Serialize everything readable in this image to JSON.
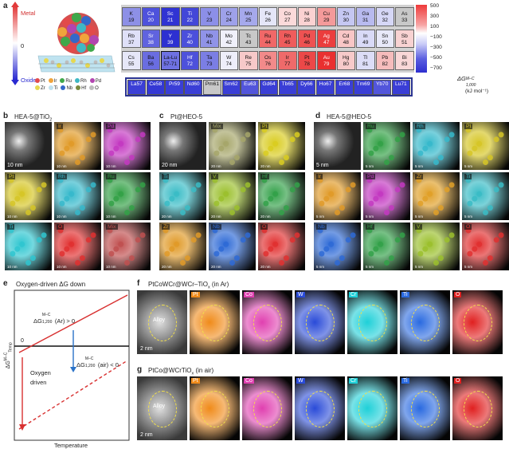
{
  "panel_a": {
    "letter": "a",
    "axis_top": "Metal",
    "axis_zero": "0",
    "axis_bottom": "Oxide",
    "legend": [
      {
        "sym": "Pt",
        "color": "#e24a4a"
      },
      {
        "sym": "Ir",
        "color": "#f0a43b"
      },
      {
        "sym": "Ru",
        "color": "#3fa84a"
      },
      {
        "sym": "Rh",
        "color": "#3fb8c4"
      },
      {
        "sym": "Pd",
        "color": "#b245b0"
      },
      {
        "sym": "Zr",
        "color": "#e6d850"
      },
      {
        "sym": "Ti",
        "color": "#bfe1ee"
      },
      {
        "sym": "Nb",
        "color": "#3468c9"
      },
      {
        "sym": "Hf",
        "color": "#7a8a40"
      },
      {
        "sym": "O",
        "color": "#bdbdbd"
      }
    ],
    "elements": [
      {
        "s": "K",
        "n": "19",
        "c": "#8d90e6"
      },
      {
        "s": "Ca",
        "n": "20",
        "c": "#4e52dc"
      },
      {
        "s": "Sc",
        "n": "21",
        "c": "#3033d3"
      },
      {
        "s": "Ti",
        "n": "22",
        "c": "#4347d8"
      },
      {
        "s": "V",
        "n": "23",
        "c": "#8c8fe8"
      },
      {
        "s": "Cr",
        "n": "24",
        "c": "#9ea1ea"
      },
      {
        "s": "Mn",
        "n": "25",
        "c": "#a6a9ec"
      },
      {
        "s": "Fe",
        "n": "26",
        "c": "#e5e6f8"
      },
      {
        "s": "Co",
        "n": "27",
        "c": "#fbdada"
      },
      {
        "s": "Ni",
        "n": "28",
        "c": "#fbd2d2"
      },
      {
        "s": "Cu",
        "n": "29",
        "c": "#f49a9a"
      },
      {
        "s": "Zn",
        "n": "30",
        "c": "#c5c7f2"
      },
      {
        "s": "Ga",
        "n": "31",
        "c": "#b8baef"
      },
      {
        "s": "Ge",
        "n": "32",
        "c": "#d6d7f6"
      },
      {
        "s": "As",
        "n": "33",
        "c": "#c8c8c8"
      },
      {
        "s": "Rb",
        "n": "37",
        "c": "#dfe0f8"
      },
      {
        "s": "Sr",
        "n": "38",
        "c": "#6063df"
      },
      {
        "s": "Y",
        "n": "39",
        "c": "#2d30d1"
      },
      {
        "s": "Zr",
        "n": "40",
        "c": "#4b4fdb"
      },
      {
        "s": "Nb",
        "n": "41",
        "c": "#9093e8"
      },
      {
        "s": "Mo",
        "n": "42",
        "c": "#f0f0fa"
      },
      {
        "s": "Tc",
        "n": "43",
        "c": "#c8c8c8"
      },
      {
        "s": "Ru",
        "n": "44",
        "c": "#f16868"
      },
      {
        "s": "Rh",
        "n": "45",
        "c": "#ef5c5c"
      },
      {
        "s": "Pd",
        "n": "46",
        "c": "#ee5252"
      },
      {
        "s": "Ag",
        "n": "47",
        "c": "#eb3d3d"
      },
      {
        "s": "Cd",
        "n": "48",
        "c": "#f8c6c6"
      },
      {
        "s": "In",
        "n": "49",
        "c": "#d9daf7"
      },
      {
        "s": "Sn",
        "n": "50",
        "c": "#e8e9f9"
      },
      {
        "s": "Sb",
        "n": "51",
        "c": "#f8d2d2"
      },
      {
        "s": "Cs",
        "n": "55",
        "c": "#e6e7f8"
      },
      {
        "s": "Ba",
        "n": "56",
        "c": "#6a6de1"
      },
      {
        "s": "La-Lu",
        "n": "57-71",
        "c": "#6e71e2"
      },
      {
        "s": "Hf",
        "n": "72",
        "c": "#4d51db"
      },
      {
        "s": "Ta",
        "n": "73",
        "c": "#7b7ee4"
      },
      {
        "s": "W",
        "n": "74",
        "c": "#eeeefa"
      },
      {
        "s": "Re",
        "n": "75",
        "c": "#f7c9c9"
      },
      {
        "s": "Os",
        "n": "76",
        "c": "#f28a8a"
      },
      {
        "s": "Ir",
        "n": "77",
        "c": "#ef6a6a"
      },
      {
        "s": "Pt",
        "n": "78",
        "c": "#ec4848"
      },
      {
        "s": "Au",
        "n": "79",
        "c": "#e93030"
      },
      {
        "s": "Hg",
        "n": "80",
        "c": "#f7caca"
      },
      {
        "s": "Tl",
        "n": "81",
        "c": "#dcddf7"
      },
      {
        "s": "Pb",
        "n": "82",
        "c": "#f6bcbc"
      },
      {
        "s": "Bi",
        "n": "83",
        "c": "#f9d7d7"
      }
    ],
    "lanthanides": [
      {
        "s": "La",
        "n": "57",
        "c": "#3b3fd6"
      },
      {
        "s": "Ce",
        "n": "58",
        "c": "#3438d4"
      },
      {
        "s": "Pr",
        "n": "59",
        "c": "#3a3ed6"
      },
      {
        "s": "Nd",
        "n": "60",
        "c": "#3a3ed6"
      },
      {
        "s": "Pm",
        "n": "61",
        "c": "#c8c8c8"
      },
      {
        "s": "Sm",
        "n": "62",
        "c": "#3a3ed6"
      },
      {
        "s": "Eu",
        "n": "63",
        "c": "#5255db"
      },
      {
        "s": "Gd",
        "n": "64",
        "c": "#3a3ed6"
      },
      {
        "s": "Tb",
        "n": "65",
        "c": "#3a3ed6"
      },
      {
        "s": "Dy",
        "n": "66",
        "c": "#3a3ed6"
      },
      {
        "s": "Ho",
        "n": "67",
        "c": "#3a3ed6"
      },
      {
        "s": "Er",
        "n": "68",
        "c": "#3a3ed6"
      },
      {
        "s": "Tm",
        "n": "69",
        "c": "#3a3ed6"
      },
      {
        "s": "Yb",
        "n": "70",
        "c": "#5255db"
      },
      {
        "s": "Lu",
        "n": "71",
        "c": "#3a3ed6"
      }
    ],
    "colorbar_ticks": [
      "500",
      "300",
      "100",
      "−100",
      "−300",
      "−500",
      "−700"
    ],
    "colorbar_label_main": "ΔG",
    "colorbar_label_sup": "M–C",
    "colorbar_label_sub": "1,000",
    "colorbar_unit": "(kJ mol⁻¹)"
  },
  "panel_b": {
    "letter": "b",
    "title": "HEA-5@TiO",
    "title_sub": "2",
    "scale_main": "10 nm",
    "scale_small": "10 nm",
    "tiles": [
      {
        "label": "",
        "color": "#b7b7b7"
      },
      {
        "label": "Ir",
        "color": "#e09a28"
      },
      {
        "label": "Pd",
        "color": "#c338c1"
      },
      {
        "label": "Pt",
        "color": "#d6c627"
      },
      {
        "label": "Rh",
        "color": "#36b9cb"
      },
      {
        "label": "Ru",
        "color": "#33a146"
      },
      {
        "label": "Ti",
        "color": "#2fc6d0"
      },
      {
        "label": "O",
        "color": "#e13030"
      },
      {
        "label": "Mix",
        "color": "#c05050"
      }
    ]
  },
  "panel_c": {
    "letter": "c",
    "title": "Pt@HEO-5",
    "scale_main": "20 nm",
    "scale_small": "20 nm",
    "tiles": [
      {
        "label": "",
        "color": "#b7b7b7"
      },
      {
        "label": "Mix",
        "color": "#a6a66a"
      },
      {
        "label": "Pt",
        "color": "#d9cc20"
      },
      {
        "label": "Ti",
        "color": "#39bcc6"
      },
      {
        "label": "V",
        "color": "#9bc02d"
      },
      {
        "label": "Hf",
        "color": "#33a149"
      },
      {
        "label": "Zr",
        "color": "#e09a28"
      },
      {
        "label": "Nb",
        "color": "#2e6ad6"
      },
      {
        "label": "O",
        "color": "#e13030"
      }
    ]
  },
  "panel_d": {
    "letter": "d",
    "title": "HEA-5@HEO-5",
    "scale_main": "5 nm",
    "scale_small": "5 nm",
    "tiles": [
      {
        "label": "",
        "color": "#b7b7b7"
      },
      {
        "label": "Ru",
        "color": "#33a146"
      },
      {
        "label": "Rh",
        "color": "#36b9cb"
      },
      {
        "label": "Pt",
        "color": "#d6c627"
      },
      {
        "label": "Ir",
        "color": "#e09a28"
      },
      {
        "label": "Pd",
        "color": "#c338c1"
      },
      {
        "label": "Zr",
        "color": "#e0a028"
      },
      {
        "label": "Ti",
        "color": "#39bcc6"
      },
      {
        "label": "Nb",
        "color": "#2e6ad6"
      },
      {
        "label": "Hf",
        "color": "#33a149"
      },
      {
        "label": "V",
        "color": "#9bc02d"
      },
      {
        "label": "O",
        "color": "#e13030"
      }
    ]
  },
  "panel_e": {
    "letter": "e",
    "title": "Oxygen-driven ΔG down",
    "line_ar": "ΔG",
    "line_ar_sup": "M–C",
    "line_ar_sub": "1,200",
    "line_ar_rest": "(Ar) > 0",
    "line_air_rest": "(air) < 0",
    "oxygen_driven": "Oxygen driven",
    "zero": "0",
    "ylabel": "ΔG",
    "ylabel_sup": "M–C",
    "ylabel_sub": "Temp",
    "xlabel": "Temperature"
  },
  "panel_f": {
    "letter": "f",
    "title": "PtCoWCr@WCr–TiO",
    "title_sub": "x",
    "title_rest": " (in Ar)",
    "alloy": "Alloy",
    "scale": "2 nm",
    "tiles": [
      {
        "label": "",
        "color": "#c8c8c8"
      },
      {
        "label": "Pt",
        "color": "#f08b1a"
      },
      {
        "label": "Co",
        "color": "#e040b0"
      },
      {
        "label": "W",
        "color": "#2a4bd8"
      },
      {
        "label": "Cr",
        "color": "#1fd0d8"
      },
      {
        "label": "Ti",
        "color": "#2a6ae0"
      },
      {
        "label": "O",
        "color": "#e02020"
      }
    ]
  },
  "panel_g": {
    "letter": "g",
    "title": "PtCo@WCrTiO",
    "title_sub": "x",
    "title_rest": " (in air)",
    "alloy": "Alloy",
    "scale": "2 nm",
    "tiles": [
      {
        "label": "",
        "color": "#c8c8c8"
      },
      {
        "label": "Pt",
        "color": "#f08b1a"
      },
      {
        "label": "Co",
        "color": "#e040b0"
      },
      {
        "label": "W",
        "color": "#2a4bd8"
      },
      {
        "label": "Cr",
        "color": "#1fd0d8"
      },
      {
        "label": "Ti",
        "color": "#2a6ae0"
      },
      {
        "label": "O",
        "color": "#e02020"
      }
    ]
  }
}
